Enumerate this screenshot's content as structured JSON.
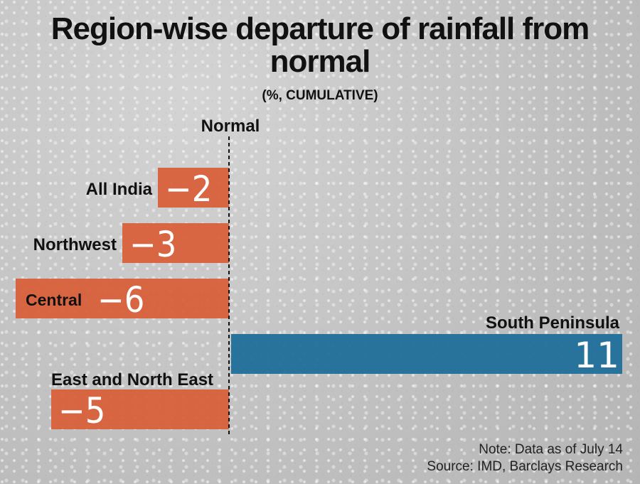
{
  "chart_data": {
    "type": "bar",
    "orientation": "horizontal",
    "title": "Region-wise departure of rainfall from normal",
    "subtitle": "(%, CUMULATIVE)",
    "baseline_label": "Normal",
    "categories": [
      "All India",
      "Northwest",
      "Central",
      "South Peninsula",
      "East and North East"
    ],
    "values": [
      -2,
      -3,
      -6,
      11,
      -5
    ],
    "value_labels": [
      "-2",
      "-3",
      "-6",
      "11",
      "-5"
    ],
    "xlim": [
      -6,
      11
    ],
    "grid": false,
    "colors": {
      "negative": "#d9603a",
      "positive": "#1f6f9a"
    }
  },
  "notes": {
    "note": "Note: Data as of July 14",
    "source": "Source: IMD, Barclays Research"
  }
}
